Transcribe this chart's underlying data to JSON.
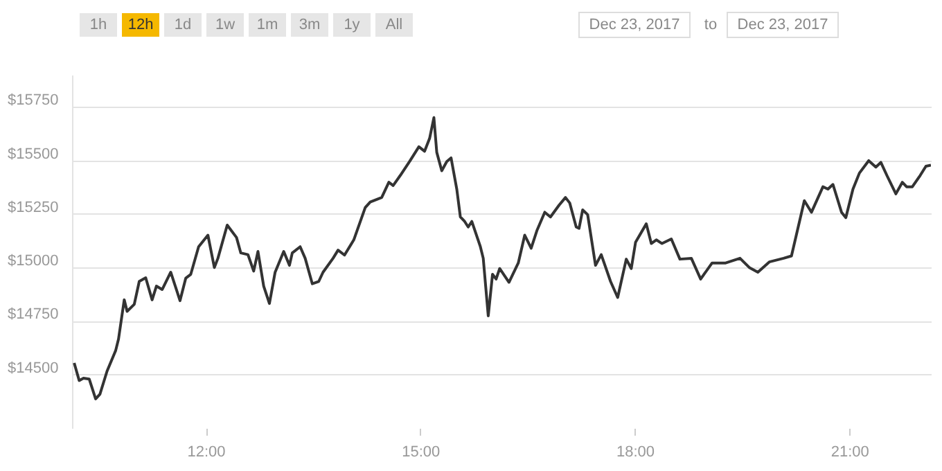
{
  "chart_data": {
    "type": "line",
    "annotations": [
      "1h",
      "12h",
      "1d",
      "1w",
      "1m",
      "3m",
      "1y",
      "All",
      "Dec 23, 2017",
      "to",
      "Dec 23, 2017"
    ],
    "x": [
      10.16,
      10.23,
      10.29,
      10.37,
      10.46,
      10.52,
      10.62,
      10.74,
      10.78,
      10.86,
      10.9,
      11.0,
      11.07,
      11.16,
      11.25,
      11.31,
      11.39,
      11.51,
      11.64,
      11.72,
      11.79,
      11.9,
      12.03,
      12.12,
      12.17,
      12.3,
      12.43,
      12.49,
      12.59,
      12.67,
      12.73,
      12.81,
      12.89,
      12.97,
      13.09,
      13.17,
      13.21,
      13.32,
      13.39,
      13.49,
      13.58,
      13.64,
      13.78,
      13.85,
      13.94,
      14.07,
      14.23,
      14.3,
      14.46,
      14.56,
      14.62,
      14.72,
      14.85,
      14.98,
      15.06,
      15.13,
      15.19,
      15.23,
      15.3,
      15.37,
      15.43,
      15.51,
      15.56,
      15.62,
      15.67,
      15.72,
      15.84,
      15.88,
      15.95,
      16.01,
      16.06,
      16.11,
      16.24,
      16.37,
      16.46,
      16.55,
      16.63,
      16.74,
      16.82,
      16.94,
      17.03,
      17.09,
      17.18,
      17.22,
      17.27,
      17.34,
      17.45,
      17.53,
      17.66,
      17.76,
      17.88,
      17.95,
      18.01,
      18.16,
      18.23,
      18.3,
      18.38,
      18.51,
      18.63,
      18.79,
      18.92,
      19.08,
      19.27,
      19.47,
      19.6,
      19.72,
      19.88,
      20.08,
      20.19,
      20.37,
      20.47,
      20.63,
      20.7,
      20.77,
      20.89,
      20.95,
      21.05,
      21.14,
      21.27,
      21.37,
      21.44,
      21.53,
      21.65,
      21.74,
      21.8,
      21.88,
      21.99,
      22.07,
      22.14
    ],
    "series": [
      {
        "color": "#333333",
        "values": [
          14554,
          14472,
          14483,
          14479,
          14386,
          14408,
          14516,
          14612,
          14666,
          14849,
          14795,
          14828,
          14935,
          14952,
          14849,
          14913,
          14897,
          14978,
          14845,
          14950,
          14968,
          15097,
          15151,
          15000,
          15043,
          15198,
          15140,
          15068,
          15060,
          14983,
          15075,
          14913,
          14832,
          14978,
          15075,
          15010,
          15068,
          15097,
          15043,
          14924,
          14935,
          14978,
          15043,
          15081,
          15058,
          15129,
          15280,
          15306,
          15327,
          15398,
          15383,
          15430,
          15495,
          15564,
          15543,
          15603,
          15700,
          15538,
          15452,
          15495,
          15512,
          15366,
          15236,
          15215,
          15189,
          15215,
          15097,
          15043,
          14774,
          14968,
          14946,
          14995,
          14931,
          15021,
          15151,
          15090,
          15172,
          15258,
          15236,
          15291,
          15327,
          15301,
          15189,
          15183,
          15269,
          15247,
          15010,
          15060,
          14935,
          14860,
          15039,
          14995,
          15118,
          15204,
          15112,
          15129,
          15112,
          15133,
          15039,
          15043,
          14946,
          15021,
          15021,
          15043,
          15000,
          14978,
          15026,
          15043,
          15054,
          15312,
          15258,
          15377,
          15366,
          15388,
          15258,
          15233,
          15366,
          15441,
          15499,
          15469,
          15491,
          15426,
          15344,
          15398,
          15377,
          15377,
          15430,
          15473,
          15478
        ]
      }
    ],
    "xlim": [
      10.13,
      22.14
    ],
    "xticks": [
      {
        "value": 12,
        "label": "12:00"
      },
      {
        "value": 15,
        "label": "15:00"
      },
      {
        "value": 18,
        "label": "18:00"
      },
      {
        "value": 21,
        "label": "21:00"
      }
    ],
    "ylim": [
      14250,
      15900
    ],
    "yticks": [
      {
        "value": 14500,
        "label": "$14500"
      },
      {
        "value": 14750,
        "label": "$14750"
      },
      {
        "value": 15000,
        "label": "$15000"
      },
      {
        "value": 15250,
        "label": "$15250"
      },
      {
        "value": 15500,
        "label": "$15500"
      },
      {
        "value": 15750,
        "label": "$15750"
      }
    ],
    "grid": "y",
    "legend": false,
    "marker": "none",
    "line_style": "solid"
  }
}
